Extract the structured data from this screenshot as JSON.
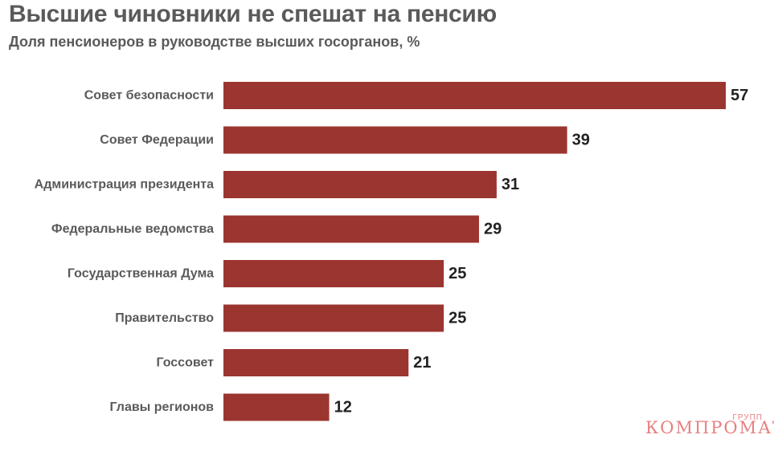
{
  "chart_data": {
    "type": "bar",
    "orientation": "horizontal",
    "title": "Высшие чиновники не спешат на пенсию",
    "subtitle": "Доля пенсионеров в руководстве высших госорганов, %",
    "categories": [
      "Совет безопасности",
      "Совет Федерации",
      "Администрация президента",
      "Федеральные ведомства",
      "Государственная Дума",
      "Правительство",
      "Госсовет",
      "Главы регионов"
    ],
    "values": [
      57,
      39,
      31,
      29,
      25,
      25,
      21,
      12
    ],
    "xlim": [
      0,
      57
    ],
    "grid": false,
    "bar_color": "#9b3530"
  },
  "watermark": {
    "main": "КОМПРОМАТ",
    "small": "ГРУПП"
  },
  "colors": {
    "title": "#5a5a5a",
    "value_text": "#222222",
    "watermark": "#e87f7f"
  }
}
